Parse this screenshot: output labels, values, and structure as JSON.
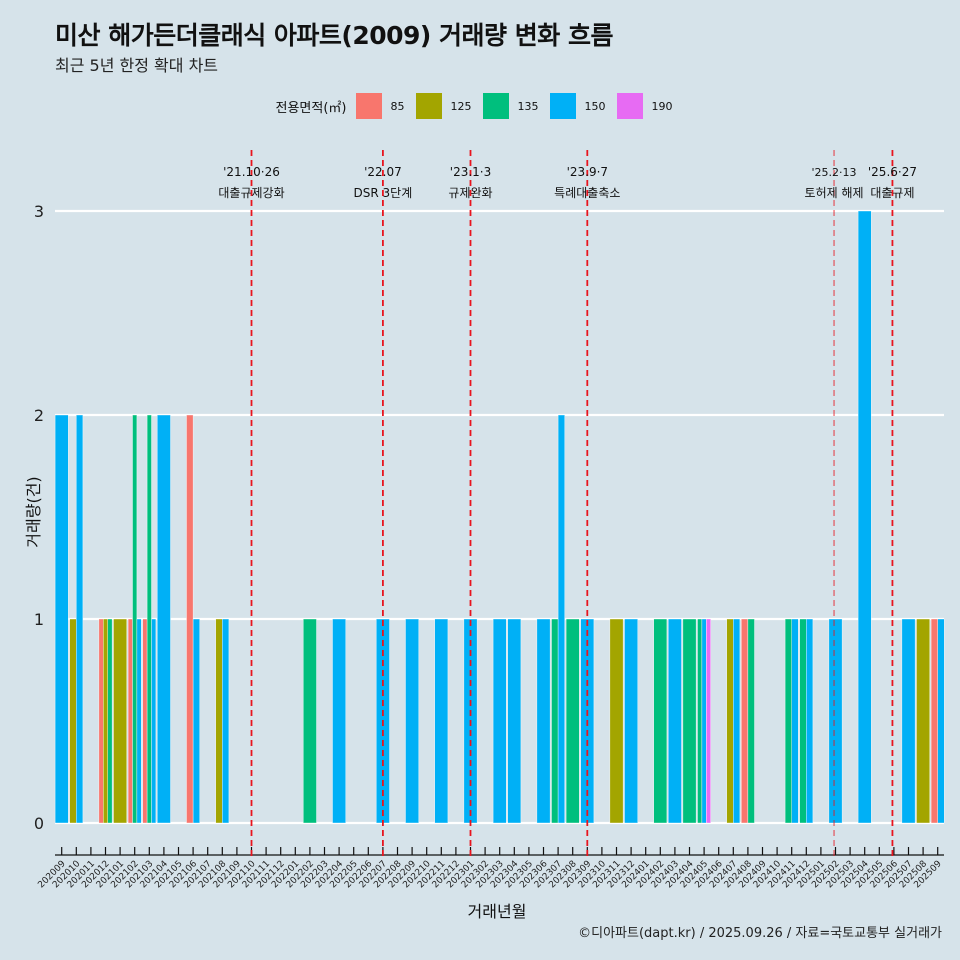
{
  "chart_data": {
    "type": "bar",
    "title": "미산 해가든더클래식 아파트(2009) 거래량 변화 흐름",
    "subtitle": "최근 5년 한정 확대 차트",
    "xlabel": "거래년월",
    "ylabel": "거래량(건)",
    "ylim": [
      0,
      3
    ],
    "yticks": [
      0,
      1,
      2,
      3
    ],
    "grid": true,
    "legend": {
      "title": "전용면적(㎡)",
      "position": "top",
      "entries": [
        {
          "name": "85",
          "color": "#F8766D"
        },
        {
          "name": "125",
          "color": "#A3A500"
        },
        {
          "name": "135",
          "color": "#00BF7D"
        },
        {
          "name": "150",
          "color": "#00B0F6"
        },
        {
          "name": "190",
          "color": "#E76BF3"
        }
      ]
    },
    "categories": [
      "202009",
      "202010",
      "202011",
      "202012",
      "202101",
      "202102",
      "202103",
      "202104",
      "202105",
      "202106",
      "202107",
      "202108",
      "202109",
      "202110",
      "202111",
      "202112",
      "202201",
      "202202",
      "202203",
      "202204",
      "202205",
      "202206",
      "202207",
      "202208",
      "202209",
      "202210",
      "202211",
      "202212",
      "202301",
      "202302",
      "202303",
      "202304",
      "202305",
      "202306",
      "202307",
      "202308",
      "202309",
      "202310",
      "202311",
      "202312",
      "202401",
      "202402",
      "202403",
      "202404",
      "202405",
      "202406",
      "202407",
      "202408",
      "202409",
      "202410",
      "202411",
      "202412",
      "202501",
      "202502",
      "202503",
      "202504",
      "202505",
      "202506",
      "202507",
      "202508",
      "202509"
    ],
    "data": [
      {
        "month": "202009",
        "area": "150",
        "count": 2
      },
      {
        "month": "202010",
        "area": "125",
        "count": 1
      },
      {
        "month": "202010",
        "area": "150",
        "count": 2
      },
      {
        "month": "202012",
        "area": "85",
        "count": 1
      },
      {
        "month": "202012",
        "area": "125",
        "count": 1
      },
      {
        "month": "202012",
        "area": "135",
        "count": 1
      },
      {
        "month": "202101",
        "area": "125",
        "count": 1
      },
      {
        "month": "202102",
        "area": "85",
        "count": 1
      },
      {
        "month": "202102",
        "area": "135",
        "count": 2
      },
      {
        "month": "202102",
        "area": "150",
        "count": 1
      },
      {
        "month": "202103",
        "area": "85",
        "count": 1
      },
      {
        "month": "202103",
        "area": "135",
        "count": 2
      },
      {
        "month": "202103",
        "area": "150",
        "count": 1
      },
      {
        "month": "202104",
        "area": "150",
        "count": 2
      },
      {
        "month": "202106",
        "area": "85",
        "count": 2
      },
      {
        "month": "202106",
        "area": "150",
        "count": 1
      },
      {
        "month": "202108",
        "area": "125",
        "count": 1
      },
      {
        "month": "202108",
        "area": "150",
        "count": 1
      },
      {
        "month": "202202",
        "area": "135",
        "count": 1
      },
      {
        "month": "202204",
        "area": "150",
        "count": 1
      },
      {
        "month": "202207",
        "area": "150",
        "count": 1
      },
      {
        "month": "202209",
        "area": "150",
        "count": 1
      },
      {
        "month": "202211",
        "area": "150",
        "count": 1
      },
      {
        "month": "202301",
        "area": "150",
        "count": 1
      },
      {
        "month": "202303",
        "area": "150",
        "count": 1
      },
      {
        "month": "202304",
        "area": "150",
        "count": 1
      },
      {
        "month": "202306",
        "area": "150",
        "count": 1
      },
      {
        "month": "202307",
        "area": "135",
        "count": 1
      },
      {
        "month": "202307",
        "area": "150",
        "count": 2
      },
      {
        "month": "202308",
        "area": "135",
        "count": 1
      },
      {
        "month": "202309",
        "area": "150",
        "count": 1
      },
      {
        "month": "202311",
        "area": "125",
        "count": 1
      },
      {
        "month": "202312",
        "area": "150",
        "count": 1
      },
      {
        "month": "202402",
        "area": "135",
        "count": 1
      },
      {
        "month": "202403",
        "area": "150",
        "count": 1
      },
      {
        "month": "202404",
        "area": "135",
        "count": 1
      },
      {
        "month": "202405",
        "area": "135",
        "count": 1
      },
      {
        "month": "202405",
        "area": "150",
        "count": 1
      },
      {
        "month": "202405",
        "area": "190",
        "count": 1
      },
      {
        "month": "202407",
        "area": "125",
        "count": 1
      },
      {
        "month": "202407",
        "area": "150",
        "count": 1
      },
      {
        "month": "202408",
        "area": "85",
        "count": 1
      },
      {
        "month": "202408",
        "area": "135",
        "count": 1
      },
      {
        "month": "202411",
        "area": "135",
        "count": 1
      },
      {
        "month": "202411",
        "area": "150",
        "count": 1
      },
      {
        "month": "202412",
        "area": "135",
        "count": 1
      },
      {
        "month": "202412",
        "area": "150",
        "count": 1
      },
      {
        "month": "202502",
        "area": "150",
        "count": 1
      },
      {
        "month": "202504",
        "area": "150",
        "count": 3
      },
      {
        "month": "202507",
        "area": "150",
        "count": 1
      },
      {
        "month": "202508",
        "area": "125",
        "count": 1
      },
      {
        "month": "202509",
        "area": "85",
        "count": 1
      },
      {
        "month": "202509",
        "area": "150",
        "count": 1
      }
    ],
    "annotations": [
      {
        "month_pos": 13.0,
        "date": "'21.10·26",
        "label": "대출규제강화",
        "style": "dashed"
      },
      {
        "month_pos": 22.0,
        "date": "'22.07",
        "label": "DSR 3단계",
        "style": "dashed"
      },
      {
        "month_pos": 28.0,
        "date": "'23.1·3",
        "label": "규제완화",
        "style": "dashed"
      },
      {
        "month_pos": 36.0,
        "date": "'23.9·7",
        "label": "특례대출축소",
        "style": "dashed"
      },
      {
        "month_pos": 52.9,
        "date": "'25.2·13",
        "label": "토허제 해제",
        "style": "dashed-faint"
      },
      {
        "month_pos": 56.9,
        "date": "'25.6·27",
        "label": "대출규제",
        "style": "dashed"
      }
    ]
  },
  "footer": "©디아파트(dapt.kr) / 2025.09.26 / 자료=국토교통부 실거래가",
  "accent_line_color": "#E8151E"
}
